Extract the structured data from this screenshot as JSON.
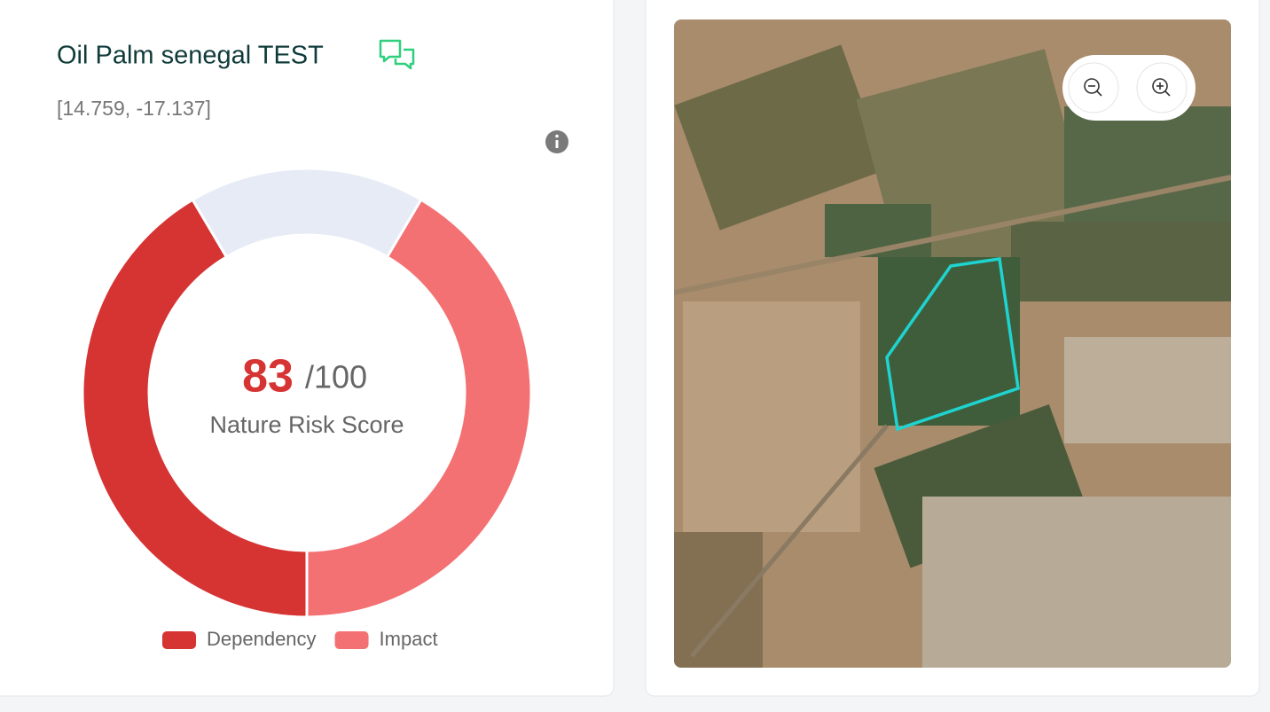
{
  "header": {
    "title": "Oil Palm senegal TEST",
    "coordinates": "[14.759, -17.137]"
  },
  "chart_data": {
    "type": "donut",
    "score": 83,
    "score_suffix": "/100",
    "score_label": "Nature Risk Score",
    "categories": [
      "Dependency",
      null,
      "Impact"
    ],
    "values": [
      41.5,
      17,
      41.5
    ],
    "colors": [
      "#d63333",
      "#e6ebf6",
      "#f47173"
    ]
  }
}
